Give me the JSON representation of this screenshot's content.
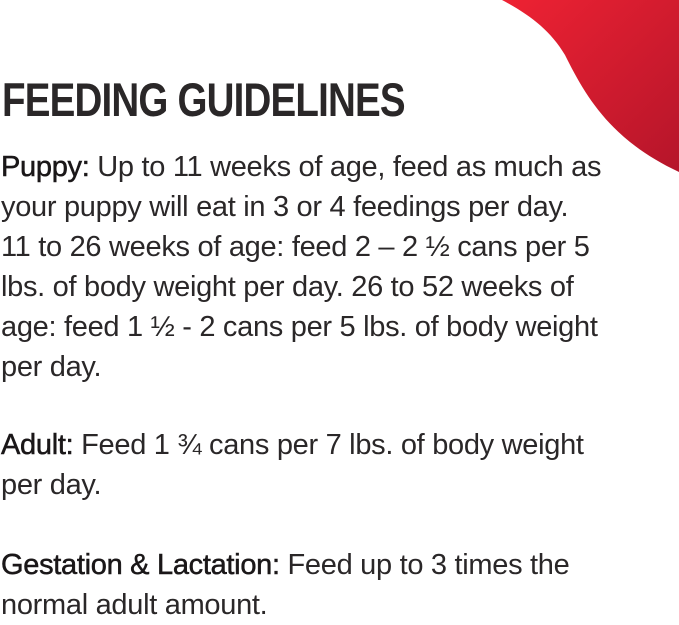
{
  "title": "FEEDING GUIDELINES",
  "accent_color": "#e31b2c",
  "puppy": {
    "label": "Puppy:",
    "lines": [
      " Up to 11 weeks of age, feed as much as",
      "your puppy will eat in 3 or 4 feedings per day.",
      "11 to 26 weeks of age: feed 2 – 2 ½ cans per 5",
      "lbs. of body weight per day. 26 to 52 weeks of",
      "age: feed 1 ½ - 2 cans per 5 lbs. of body weight",
      "per day."
    ]
  },
  "adult": {
    "label": "Adult:",
    "lines": [
      " Feed 1 ¾ cans per 7 lbs. of body weight",
      "per day."
    ]
  },
  "gestation": {
    "label": "Gestation & Lactation:",
    "lines": [
      " Feed up to 3 times the",
      "normal adult amount."
    ]
  }
}
